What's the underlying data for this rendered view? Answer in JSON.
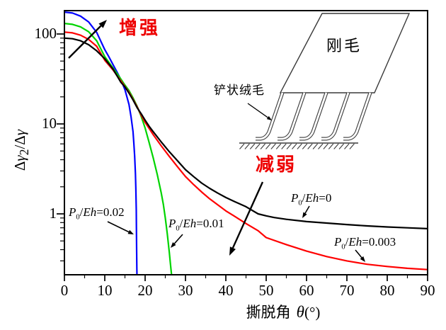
{
  "figure": {
    "background": "#ffffff",
    "annotation_color": "#ee0000",
    "annotations": {
      "enhance": "增强",
      "weaken": "减弱"
    },
    "inset": {
      "pad_label": "刚毛",
      "spatula_label": "铲状绒毛"
    }
  },
  "chart_data": {
    "type": "line",
    "title": "",
    "xlabel_cn": "撕脱角",
    "xlabel_symbol": "θ",
    "xlabel_unit": "(°)",
    "ylabel": "Δγ2/Δγ",
    "ylabel_parts": {
      "d1": "Δ",
      "g1": "γ",
      "sub": "2",
      "slash": "/",
      "d2": "Δ",
      "g2": "γ"
    },
    "x_axis": {
      "min": 0,
      "max": 90,
      "major_ticks": [
        0,
        10,
        20,
        30,
        40,
        50,
        60,
        70,
        80,
        90
      ],
      "minor_ticks": [
        5,
        15,
        25,
        35,
        45,
        55,
        65,
        75,
        85
      ],
      "tick_labels": [
        "0",
        "10",
        "20",
        "30",
        "40",
        "50",
        "60",
        "70",
        "80",
        "90"
      ]
    },
    "y_axis": {
      "scale": "log",
      "min": 0.21,
      "max": 182,
      "major_ticks": [
        1,
        10,
        100
      ],
      "tick_labels": [
        "1",
        "10",
        "100"
      ],
      "minor_ticks": [
        0.3,
        0.4,
        0.5,
        0.6,
        0.7,
        0.8,
        0.9,
        2,
        3,
        4,
        5,
        6,
        7,
        8,
        9,
        20,
        30,
        40,
        50,
        60,
        70,
        80,
        90
      ]
    },
    "grid": false,
    "legend": "inline curve labels",
    "series": [
      {
        "name": "P0/Eh=0.02",
        "pretension": "0.02",
        "color": "#0000ff",
        "points": [
          [
            0,
            175
          ],
          [
            2,
            171
          ],
          [
            4,
            158
          ],
          [
            6,
            136
          ],
          [
            8,
            104
          ],
          [
            10,
            67
          ],
          [
            11,
            56
          ],
          [
            12,
            46
          ],
          [
            13,
            38
          ],
          [
            14,
            31
          ],
          [
            15,
            24
          ],
          [
            16,
            16.5
          ],
          [
            16.5,
            12
          ],
          [
            17,
            8.2
          ],
          [
            17.2,
            6.2
          ],
          [
            17.4,
            4.4
          ],
          [
            17.6,
            2.8
          ],
          [
            17.7,
            1.9
          ],
          [
            17.8,
            1.1
          ],
          [
            17.85,
            0.7
          ],
          [
            17.9,
            0.4
          ],
          [
            17.95,
            0.25
          ],
          [
            18,
            0.18
          ]
        ]
      },
      {
        "name": "P0/Eh=0.01",
        "pretension": "0.01",
        "color": "#00d400",
        "points": [
          [
            0,
            131
          ],
          [
            2,
            128
          ],
          [
            4,
            120
          ],
          [
            6,
            106
          ],
          [
            8,
            84
          ],
          [
            10,
            56
          ],
          [
            12,
            42
          ],
          [
            13,
            36.5
          ],
          [
            14,
            31.5
          ],
          [
            15,
            27
          ],
          [
            16,
            23.5
          ],
          [
            17,
            19.5
          ],
          [
            18,
            15.8
          ],
          [
            19,
            12.2
          ],
          [
            20,
            9.0
          ],
          [
            21,
            6.2
          ],
          [
            22,
            4.2
          ],
          [
            23,
            2.75
          ],
          [
            24,
            1.7
          ],
          [
            24.5,
            1.28
          ],
          [
            25,
            0.9
          ],
          [
            25.5,
            0.6
          ],
          [
            26,
            0.37
          ],
          [
            26.3,
            0.27
          ],
          [
            26.7,
            0.18
          ]
        ]
      },
      {
        "name": "P0/Eh=0.003",
        "pretension": "0.003",
        "color": "#ff0000",
        "points": [
          [
            0,
            105
          ],
          [
            2,
            103
          ],
          [
            4,
            97
          ],
          [
            6,
            87
          ],
          [
            8,
            73
          ],
          [
            10,
            51
          ],
          [
            12,
            40
          ],
          [
            14,
            30
          ],
          [
            15,
            26
          ],
          [
            16,
            22.5
          ],
          [
            17,
            18.8
          ],
          [
            18,
            15.5
          ],
          [
            19,
            12.6
          ],
          [
            20,
            10.4
          ],
          [
            21,
            8.9
          ],
          [
            22,
            7.6
          ],
          [
            24,
            5.7
          ],
          [
            26,
            4.35
          ],
          [
            28,
            3.35
          ],
          [
            30,
            2.6
          ],
          [
            32,
            2.12
          ],
          [
            34,
            1.75
          ],
          [
            36,
            1.47
          ],
          [
            38,
            1.26
          ],
          [
            40,
            1.08
          ],
          [
            42,
            0.95
          ],
          [
            45,
            0.78
          ],
          [
            48,
            0.65
          ],
          [
            50,
            0.545
          ],
          [
            55,
            0.455
          ],
          [
            60,
            0.385
          ],
          [
            65,
            0.335
          ],
          [
            70,
            0.3
          ],
          [
            75,
            0.275
          ],
          [
            80,
            0.26
          ],
          [
            85,
            0.248
          ],
          [
            90,
            0.24
          ]
        ]
      },
      {
        "name": "P0/Eh=0",
        "pretension": "0",
        "color": "#000000",
        "points": [
          [
            0,
            90
          ],
          [
            2,
            88.5
          ],
          [
            4,
            84
          ],
          [
            6,
            76
          ],
          [
            8,
            65
          ],
          [
            10,
            53
          ],
          [
            12,
            41
          ],
          [
            14,
            29
          ],
          [
            15,
            25.8
          ],
          [
            16,
            22
          ],
          [
            17,
            18.5
          ],
          [
            18,
            15.2
          ],
          [
            19,
            13
          ],
          [
            20,
            11
          ],
          [
            21,
            9.4
          ],
          [
            22,
            8.2
          ],
          [
            24,
            6.3
          ],
          [
            26,
            4.9
          ],
          [
            28,
            3.9
          ],
          [
            30,
            3.1
          ],
          [
            32,
            2.6
          ],
          [
            34,
            2.2
          ],
          [
            36,
            1.92
          ],
          [
            38,
            1.7
          ],
          [
            40,
            1.52
          ],
          [
            42,
            1.38
          ],
          [
            45,
            1.2
          ],
          [
            48,
            1.0
          ],
          [
            50,
            0.95
          ],
          [
            52,
            0.91
          ],
          [
            55,
            0.87
          ],
          [
            60,
            0.82
          ],
          [
            65,
            0.79
          ],
          [
            70,
            0.76
          ],
          [
            75,
            0.735
          ],
          [
            80,
            0.715
          ],
          [
            85,
            0.7
          ],
          [
            90,
            0.685
          ]
        ]
      }
    ],
    "curve_labels": [
      {
        "pre": "P",
        "sub": "0",
        "slash": "/",
        "eh": "Eh",
        "eq": "=0.02"
      },
      {
        "pre": "P",
        "sub": "0",
        "slash": "/",
        "eh": "Eh",
        "eq": "=0.01"
      },
      {
        "pre": "P",
        "sub": "0",
        "slash": "/",
        "eh": "Eh",
        "eq": "=0"
      },
      {
        "pre": "P",
        "sub": "0",
        "slash": "/",
        "eh": "Eh",
        "eq": "=0.003"
      }
    ]
  }
}
